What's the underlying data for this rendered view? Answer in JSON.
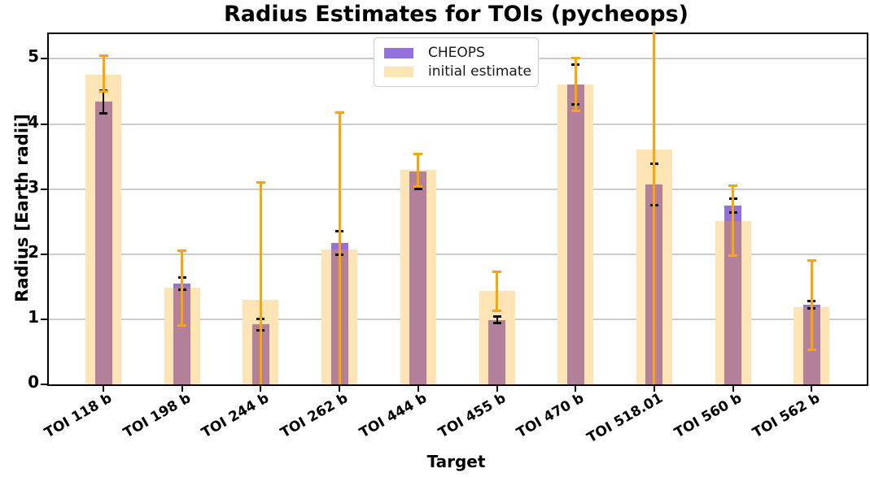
{
  "title": "Radius Estimates for TOIs (pycheops)",
  "xlabel": "Target",
  "ylabel": "Radius [Earth radii]",
  "legend": [
    {
      "label": "CHEOPS",
      "color": "#9370DB"
    },
    {
      "label": "initial estimate",
      "color": "#FFE4B5"
    }
  ],
  "colors": {
    "cheops_bar": "#9370DB",
    "cheops_overlap": "#B38099",
    "initial_bar": "#FFE4B5",
    "initial_errorbar": "#FFA500",
    "cheops_errorbar": "#000000",
    "grid": "#cccccc"
  },
  "chart_data": {
    "type": "bar",
    "title": "Radius Estimates for TOIs (pycheops)",
    "xlabel": "Target",
    "ylabel": "Radius [Earth radii]",
    "categories": [
      "TOI 118 b",
      "TOI 198 b",
      "TOI 244 b",
      "TOI 262 b",
      "TOI 444 b",
      "TOI 455 b",
      "TOI 470 b",
      "TOI 518.01",
      "TOI 560 b",
      "TOI 562 b"
    ],
    "series": [
      {
        "name": "CHEOPS",
        "color": "#9370DB",
        "values": [
          4.34,
          1.55,
          0.92,
          2.17,
          3.27,
          0.99,
          4.61,
          3.07,
          2.75,
          1.22
        ],
        "err_plus": [
          0.18,
          0.1,
          0.09,
          0.19,
          0.27,
          0.06,
          0.31,
          0.32,
          0.11,
          0.06
        ],
        "err_minus": [
          0.18,
          0.1,
          0.09,
          0.19,
          0.27,
          0.06,
          0.31,
          0.32,
          0.11,
          0.06
        ]
      },
      {
        "name": "initial estimate",
        "color": "#FFE4B5",
        "values": [
          4.75,
          1.48,
          1.3,
          2.07,
          3.3,
          1.43,
          4.61,
          3.61,
          2.51,
          1.19
        ],
        "err_plus": [
          0.3,
          0.58,
          1.81,
          2.11,
          0.25,
          0.3,
          0.41,
          2.2,
          0.55,
          0.72
        ],
        "err_minus": [
          0.26,
          0.58,
          1.5,
          2.3,
          0.27,
          0.31,
          0.42,
          3.8,
          0.54,
          0.67
        ]
      }
    ],
    "ylim": [
      0,
      5.38
    ],
    "yticks": [
      0,
      1,
      2,
      3,
      4,
      5
    ],
    "grid": "horizontal",
    "legend_position": "upper center"
  }
}
